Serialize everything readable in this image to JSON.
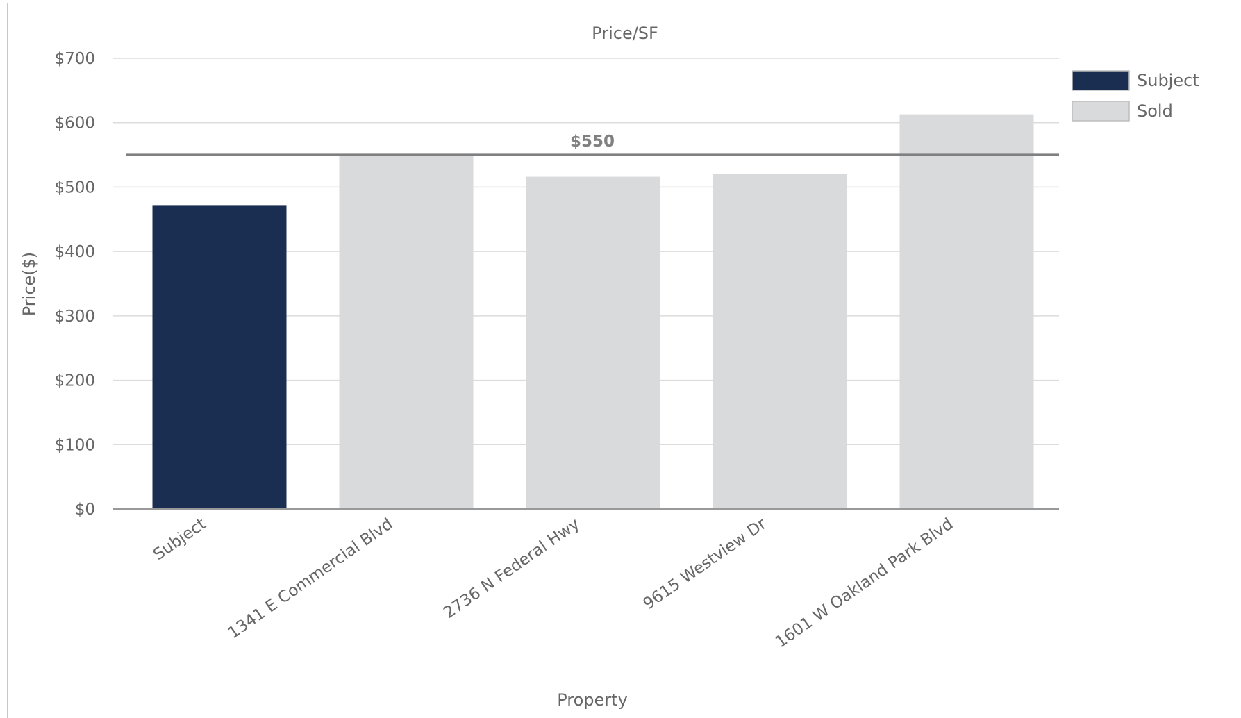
{
  "chart_data": {
    "type": "bar",
    "title": "Price/SF",
    "xlabel": "Property",
    "ylabel": "Price($)",
    "ylim": [
      0,
      700
    ],
    "yticks": [
      0,
      100,
      200,
      300,
      400,
      500,
      600,
      700
    ],
    "ytick_labels": [
      "$0",
      "$100",
      "$200",
      "$300",
      "$400",
      "$500",
      "$600",
      "$700"
    ],
    "categories": [
      "Subject",
      "1341 E Commercial Blvd",
      "2736 N Federal Hwy",
      "9615 Westview Dr",
      "1601 W Oakland Park Blvd"
    ],
    "values": [
      472,
      550,
      516,
      520,
      613
    ],
    "bar_series": [
      "Subject",
      "Sold",
      "Sold",
      "Sold",
      "Sold"
    ],
    "series": [
      {
        "name": "Subject",
        "color": "#1a2e52"
      },
      {
        "name": "Sold",
        "color": "#d9dadb"
      }
    ],
    "reference_line": {
      "value": 550,
      "label": "$550",
      "color": "#808080"
    },
    "grid": true,
    "legend_position": "top-right"
  }
}
